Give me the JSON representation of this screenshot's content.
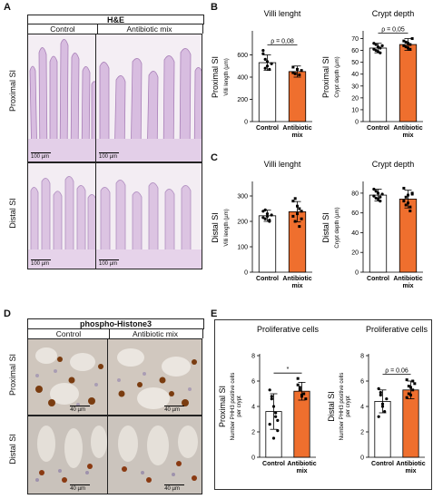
{
  "panels": {
    "A": {
      "letter": "A",
      "header": "H&E",
      "columns": [
        "Control",
        "Antibiotic mix"
      ],
      "rows": [
        "Proximal SI",
        "Distal SI"
      ],
      "scale_bar": "100 µm"
    },
    "D": {
      "letter": "D",
      "header": "phospho-Histone3",
      "columns": [
        "Control",
        "Antibiotic mix"
      ],
      "rows": [
        "Proximal SI",
        "Distal SI"
      ],
      "scale_bar": "40 µm"
    },
    "B": {
      "letter": "B"
    },
    "C": {
      "letter": "C"
    },
    "E": {
      "letter": "E"
    }
  },
  "colors": {
    "control": "#ffffff",
    "antibiotic": "#ef6f2e",
    "he_stain": "#c9a6cc",
    "dab": "#8a4a1a"
  },
  "chart_data": [
    {
      "id": "B-villi",
      "type": "bar",
      "title": "Villi lenght",
      "row_label": "Proximal SI",
      "ylabel": "Villi length (µm)",
      "categories": [
        "Control",
        "Antibiotic\nmix"
      ],
      "values": [
        530,
        450
      ],
      "errors": [
        70,
        50
      ],
      "ylim": [
        0,
        800
      ],
      "yticks": [
        0,
        200,
        400,
        600
      ],
      "points": [
        [
          640,
          560,
          500,
          470,
          520,
          610,
          480,
          540
        ],
        [
          490,
          430,
          470,
          420,
          460,
          440
        ]
      ],
      "annotation": "ρ = 0,08"
    },
    {
      "id": "B-crypt",
      "type": "bar",
      "title": "Crypt depth",
      "row_label": "Proximal SI",
      "ylabel": "Crypt depth (µm)",
      "categories": [
        "Control",
        "Antibiotic\nmix"
      ],
      "values": [
        62,
        65
      ],
      "errors": [
        4,
        5
      ],
      "ylim": [
        0,
        75
      ],
      "yticks": [
        0,
        10,
        20,
        30,
        40,
        50,
        60,
        70
      ],
      "points": [
        [
          66,
          60,
          63,
          58,
          64,
          61,
          65,
          59,
          62
        ],
        [
          68,
          63,
          66,
          61,
          70,
          64,
          67,
          62,
          65
        ]
      ],
      "annotation": "ρ = 0,05"
    },
    {
      "id": "C-villi",
      "type": "bar",
      "title": "Villi lenght",
      "row_label": "Distal SI",
      "ylabel": "Villi length (µm)",
      "categories": [
        "Control",
        "Antibiotic\nmix"
      ],
      "values": [
        222,
        238
      ],
      "errors": [
        22,
        40
      ],
      "ylim": [
        0,
        350
      ],
      "yticks": [
        0,
        100,
        200,
        300
      ],
      "points": [
        [
          240,
          210,
          230,
          200,
          225,
          215,
          245,
          220,
          205
        ],
        [
          280,
          200,
          260,
          180,
          240,
          220,
          290,
          230,
          250,
          210
        ]
      ],
      "annotation": ""
    },
    {
      "id": "C-crypt",
      "type": "bar",
      "title": "Crypt depth",
      "row_label": "Distal SI",
      "ylabel": "Crypt depth (µm)",
      "categories": [
        "Control",
        "Antibiotic\nmix"
      ],
      "values": [
        78,
        74
      ],
      "errors": [
        6,
        9
      ],
      "ylim": [
        0,
        90
      ],
      "yticks": [
        0,
        20,
        40,
        60,
        80
      ],
      "points": [
        [
          84,
          75,
          80,
          72,
          79,
          77,
          82,
          74,
          76
        ],
        [
          85,
          68,
          78,
          62,
          80,
          72,
          76,
          70,
          66,
          79
        ]
      ],
      "annotation": ""
    },
    {
      "id": "E-prox",
      "type": "bar",
      "title": "Proliferative cells",
      "row_label": "Proximal SI",
      "ylabel": "Number PHH3 positive cells\nper crypt",
      "categories": [
        "Control",
        "Antibiotic\nmix"
      ],
      "values": [
        3.6,
        5.2
      ],
      "errors": [
        1.4,
        0.7
      ],
      "ylim": [
        0,
        8
      ],
      "yticks": [
        0,
        2,
        4,
        6,
        8
      ],
      "points": [
        [
          5.3,
          4.8,
          4.0,
          3.2,
          2.1,
          2.6,
          4.6,
          1.5,
          3.5,
          2.9
        ],
        [
          6.2,
          5.5,
          4.8,
          5.0,
          4.6,
          5.7,
          5.3,
          4.9
        ]
      ],
      "annotation": "*"
    },
    {
      "id": "E-dist",
      "type": "bar",
      "title": "Proliferative cells",
      "row_label": "Distal SI",
      "ylabel": "Number PHH3 positive cells\nper crypt",
      "categories": [
        "Control",
        "Antibiotic\nmix"
      ],
      "values": [
        4.4,
        5.3
      ],
      "errors": [
        0.9,
        0.7
      ],
      "ylim": [
        0,
        8
      ],
      "yticks": [
        0,
        2,
        4,
        6,
        8
      ],
      "points": [
        [
          5.4,
          4.9,
          4.2,
          3.6,
          4.6,
          3.2,
          5.1,
          4.0
        ],
        [
          6.1,
          5.6,
          4.9,
          5.3,
          5.8,
          4.7,
          5.0,
          5.5,
          6.0
        ]
      ],
      "annotation": "ρ = 0.06"
    }
  ]
}
